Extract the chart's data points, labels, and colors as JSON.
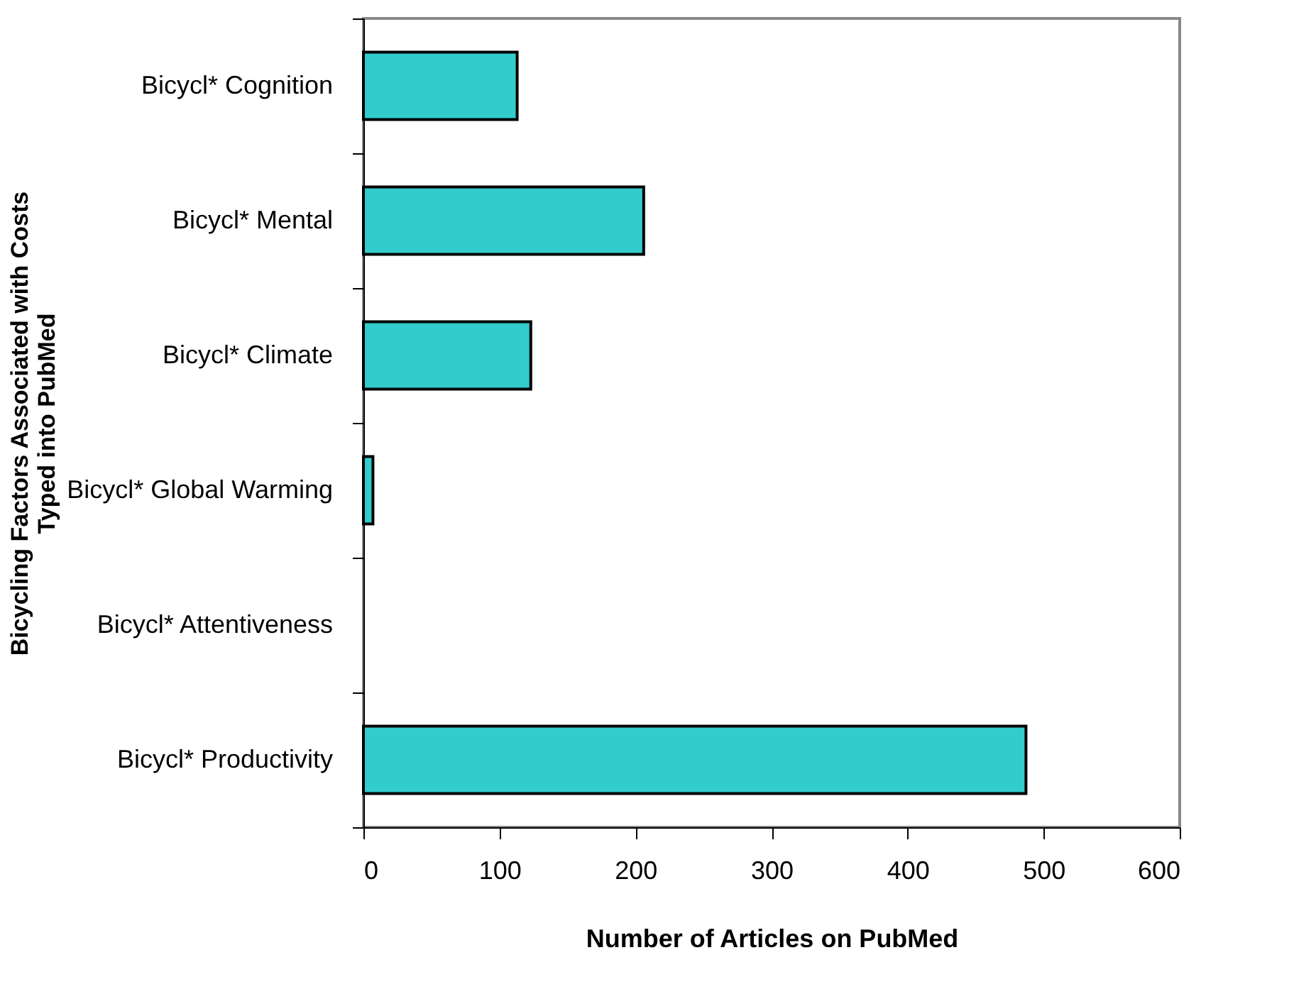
{
  "chart_data": {
    "type": "bar",
    "orientation": "horizontal",
    "categories": [
      "Bicycl* Cognition",
      "Bicycl* Mental",
      "Bicycl* Climate",
      "Bicycl* Global Warming",
      "Bicycl* Attentiveness",
      "Bicycl* Productivity"
    ],
    "values": [
      113,
      206,
      123,
      7,
      0,
      487
    ],
    "color": "#33cccc",
    "xlim": [
      0,
      600
    ],
    "xticks": [
      0,
      100,
      200,
      300,
      400,
      500,
      600
    ],
    "xlabel": "Number of Articles on PubMed",
    "ylabel": "Bicycling Factors Associated with Costs\nTyped into PubMed",
    "grid": false
  }
}
